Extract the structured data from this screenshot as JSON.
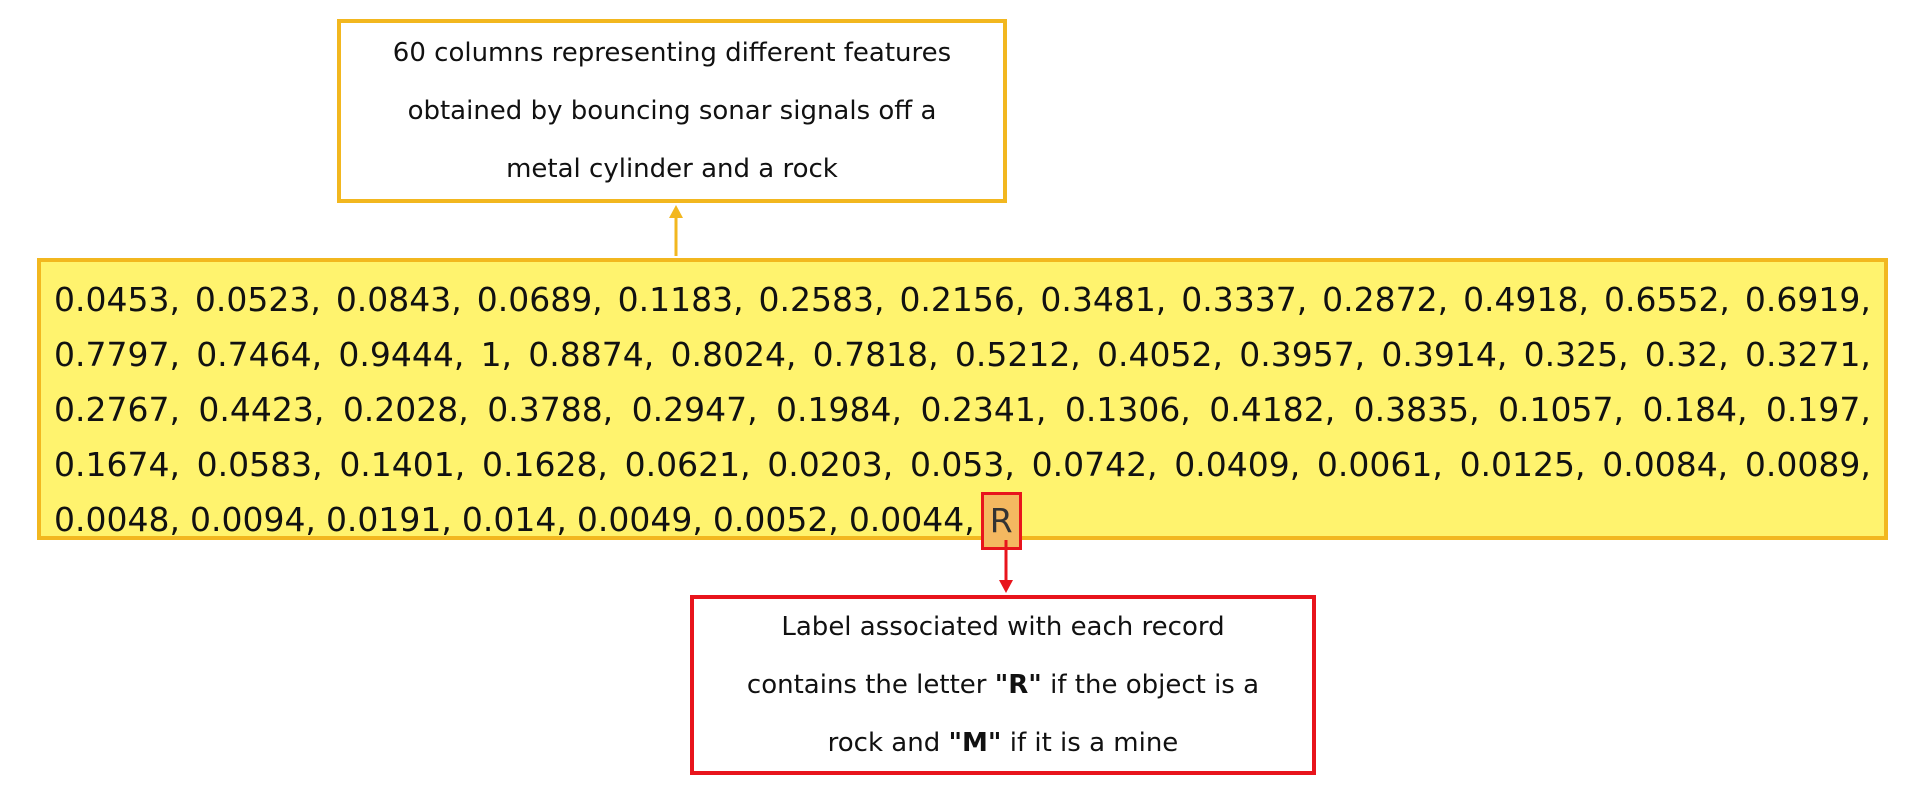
{
  "top_callout": {
    "lines": [
      "60 columns representing different features",
      "obtained by bouncing sonar signals off a",
      "metal cylinder and a rock"
    ]
  },
  "record": {
    "rows": [
      [
        "0.0453,",
        "0.0523,",
        "0.0843,",
        "0.0689,",
        "0.1183,",
        "0.2583,",
        "0.2156,",
        "0.3481,",
        "0.3337,",
        "0.2872,",
        "0.4918,",
        "0.6552,",
        "0.6919,"
      ],
      [
        "0.7797,",
        "0.7464,",
        "0.9444,",
        "1,",
        "0.8874,",
        "0.8024,",
        "0.7818,",
        "0.5212,",
        "0.4052,",
        "0.3957,",
        "0.3914,",
        "0.325,",
        "0.32,",
        "0.3271,"
      ],
      [
        "0.2767,",
        "0.4423,",
        "0.2028,",
        "0.3788,",
        "0.2947,",
        "0.1984,",
        "0.2341,",
        "0.1306,",
        "0.4182,",
        "0.3835,",
        "0.1057,",
        "0.184,",
        "0.197,"
      ],
      [
        "0.1674,",
        "0.0583,",
        "0.1401,",
        "0.1628,",
        "0.0621,",
        "0.0203,",
        "0.053,",
        "0.0742,",
        "0.0409,",
        "0.0061,",
        "0.0125,",
        "0.0084,",
        "0.0089,"
      ],
      [
        "0.0048,",
        "0.0094,",
        "0.0191,",
        "0.014,",
        "0.0049,",
        "0.0052,",
        "0.0044,"
      ]
    ],
    "label": "R"
  },
  "bottom_callout": {
    "line1": "Label associated with each record",
    "line2_pre": "contains the letter ",
    "line2_bold": "\"R\"",
    "line2_post": " if the object is a",
    "line3_pre": "rock and ",
    "line3_bold": "\"M\"",
    "line3_post": " if it is a mine"
  },
  "colors": {
    "top_border": "#f2b71f",
    "data_fill": "#fff36e",
    "label_fill": "#f4b860",
    "red": "#e8141c"
  }
}
